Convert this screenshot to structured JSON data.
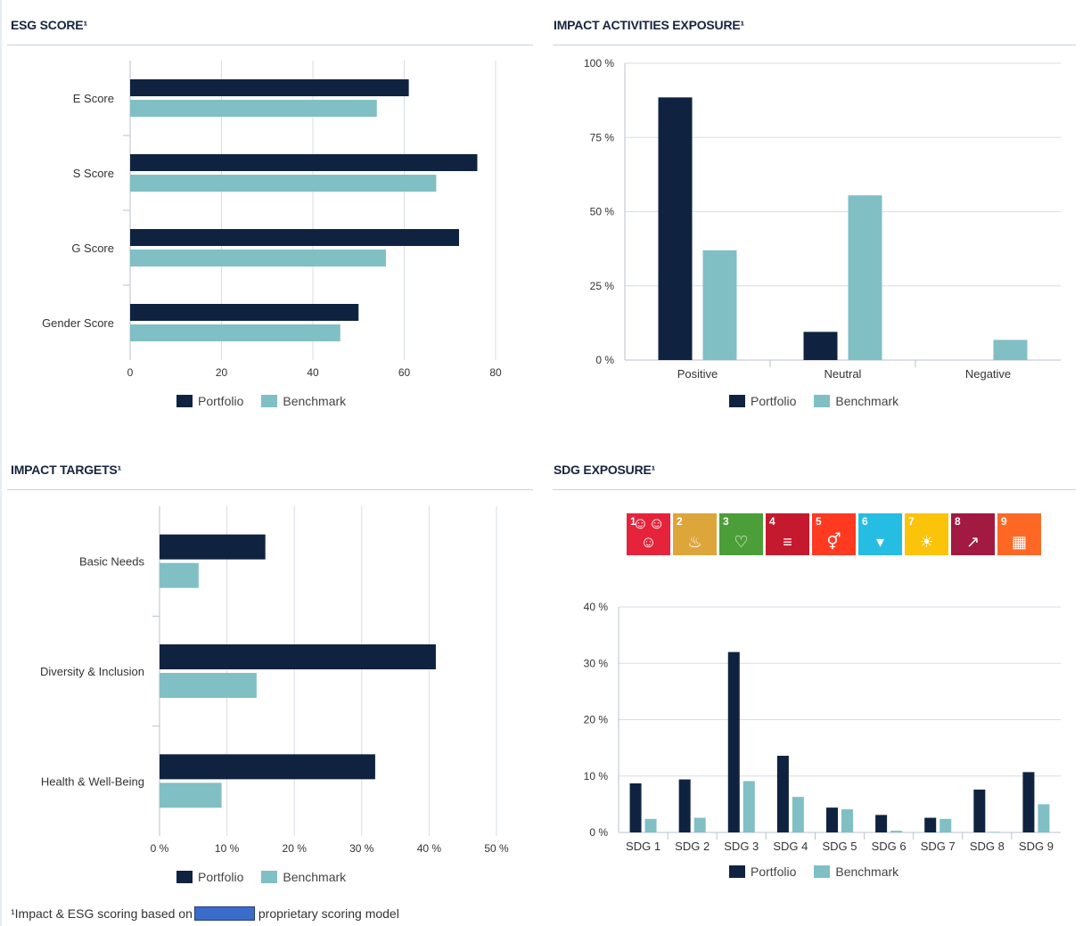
{
  "colors": {
    "portfolio": "#0f2341",
    "benchmark": "#80bfc4",
    "grid": "#d6dde5",
    "title": "#16243f"
  },
  "legend": {
    "portfolio": "Portfolio",
    "benchmark": "Benchmark"
  },
  "panels": {
    "esg_title": "ESG SCORE¹",
    "impact_activities_title": "IMPACT ACTIVITIES EXPOSURE¹",
    "impact_targets_title": "IMPACT TARGETS¹",
    "sdg_title": "SDG EXPOSURE¹"
  },
  "sdg_icons": [
    {
      "num": "1",
      "color": "#e5243b",
      "icon": "family-icon"
    },
    {
      "num": "2",
      "color": "#dda63a",
      "icon": "bowl-icon"
    },
    {
      "num": "3",
      "color": "#4c9f38",
      "icon": "heartbeat-icon"
    },
    {
      "num": "4",
      "color": "#c5192d",
      "icon": "book-icon"
    },
    {
      "num": "5",
      "color": "#ff3a21",
      "icon": "gender-icon"
    },
    {
      "num": "6",
      "color": "#26bde2",
      "icon": "water-icon"
    },
    {
      "num": "7",
      "color": "#fcc30b",
      "icon": "sun-icon"
    },
    {
      "num": "8",
      "color": "#a21942",
      "icon": "growth-icon"
    },
    {
      "num": "9",
      "color": "#fd6925",
      "icon": "cubes-icon"
    }
  ],
  "footnote": {
    "before": "¹Impact & ESG scoring based on",
    "after": " proprietary scoring model"
  },
  "chart_data": [
    {
      "id": "esg",
      "type": "bar",
      "orientation": "horizontal",
      "title": "ESG SCORE¹",
      "categories": [
        "E Score",
        "S Score",
        "G Score",
        "Gender Score"
      ],
      "series": [
        {
          "name": "Portfolio",
          "values": [
            61,
            76,
            72,
            50
          ]
        },
        {
          "name": "Benchmark",
          "values": [
            54,
            67,
            56,
            46
          ]
        }
      ],
      "xlim": [
        0,
        80
      ],
      "xticks": [
        "0",
        "20",
        "40",
        "60",
        "80"
      ],
      "grid": true,
      "legend": "bottom"
    },
    {
      "id": "activities",
      "type": "bar",
      "orientation": "vertical",
      "title": "IMPACT ACTIVITIES EXPOSURE¹",
      "categories": [
        "Positive",
        "Neutral",
        "Negative"
      ],
      "series": [
        {
          "name": "Portfolio",
          "values": [
            88.5,
            9.5,
            0
          ]
        },
        {
          "name": "Benchmark",
          "values": [
            37,
            55.5,
            6.8
          ]
        }
      ],
      "ylim": [
        0,
        100
      ],
      "yticks": [
        "0 %",
        "25 %",
        "50 %",
        "75 %",
        "100 %"
      ],
      "grid": true,
      "legend": "bottom"
    },
    {
      "id": "targets",
      "type": "bar",
      "orientation": "horizontal",
      "title": "IMPACT TARGETS¹",
      "categories": [
        "Basic Needs",
        "Diversity & Inclusion",
        "Health & Well-Being"
      ],
      "series": [
        {
          "name": "Portfolio",
          "values": [
            15.7,
            41,
            32
          ]
        },
        {
          "name": "Benchmark",
          "values": [
            5.8,
            14.4,
            9.2
          ]
        }
      ],
      "xlim": [
        0,
        50
      ],
      "xticks": [
        "0 %",
        "10 %",
        "20 %",
        "30 %",
        "40 %",
        "50 %"
      ],
      "grid": true,
      "legend": "bottom"
    },
    {
      "id": "sdg",
      "type": "bar",
      "orientation": "vertical",
      "title": "SDG EXPOSURE¹",
      "categories": [
        "SDG 1",
        "SDG 2",
        "SDG 3",
        "SDG 4",
        "SDG 5",
        "SDG 6",
        "SDG 7",
        "SDG 8",
        "SDG 9"
      ],
      "series": [
        {
          "name": "Portfolio",
          "values": [
            8.7,
            9.4,
            32,
            13.6,
            4.4,
            3.1,
            2.6,
            7.6,
            10.7
          ]
        },
        {
          "name": "Benchmark",
          "values": [
            2.4,
            2.6,
            9.1,
            6.3,
            4.1,
            0.3,
            2.4,
            0.1,
            5.0
          ]
        }
      ],
      "ylim": [
        0,
        40
      ],
      "yticks": [
        "0 %",
        "10 %",
        "20 %",
        "30 %",
        "40 %"
      ],
      "grid": true,
      "legend": "bottom"
    }
  ]
}
